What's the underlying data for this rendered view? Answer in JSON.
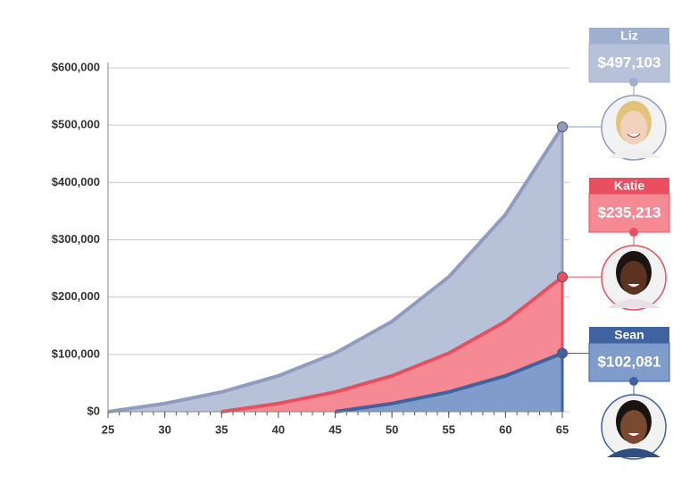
{
  "chart_data": {
    "type": "area",
    "x": [
      25,
      30,
      35,
      40,
      45,
      50,
      55,
      60,
      65
    ],
    "series": [
      {
        "name": "Liz",
        "color": "#b7c2d8",
        "line_color": "#8f9cbf",
        "card_color": "#9fafcf",
        "values": [
          0,
          14319,
          34402,
          62571,
          102081,
          157490,
          235213,
          344210,
          497103
        ],
        "value_labels": [
          null,
          null,
          null,
          null,
          null,
          null,
          null,
          null,
          "$497,103"
        ]
      },
      {
        "name": "Katie",
        "color": "#f58a95",
        "line_color": "#e8505f",
        "card_color": "#e8505f",
        "values": [
          null,
          null,
          0,
          14319,
          34402,
          62571,
          102081,
          157490,
          235213
        ],
        "value_labels": [
          null,
          null,
          null,
          null,
          null,
          null,
          null,
          null,
          "$235,213"
        ]
      },
      {
        "name": "Sean",
        "color": "#7f9ccb",
        "line_color": "#3f63a0",
        "card_color": "#3f63a0",
        "values": [
          null,
          null,
          null,
          null,
          0,
          14319,
          34402,
          62571,
          102081
        ],
        "value_labels": [
          null,
          null,
          null,
          null,
          null,
          null,
          null,
          null,
          "$102,081"
        ]
      }
    ],
    "xlim": [
      25,
      65
    ],
    "xticks": [
      25,
      30,
      35,
      40,
      45,
      50,
      55,
      60,
      65
    ],
    "ylim": [
      0,
      600000
    ],
    "yticks": [
      {
        "value": 0,
        "label": "$0"
      },
      {
        "value": 100000,
        "label": "$100,000"
      },
      {
        "value": 200000,
        "label": "$200,000"
      },
      {
        "value": 300000,
        "label": "$300,000"
      },
      {
        "value": 400000,
        "label": "$400,000"
      },
      {
        "value": 500000,
        "label": "$500,000"
      },
      {
        "value": 600000,
        "label": "$600,000"
      }
    ],
    "grid": true
  }
}
